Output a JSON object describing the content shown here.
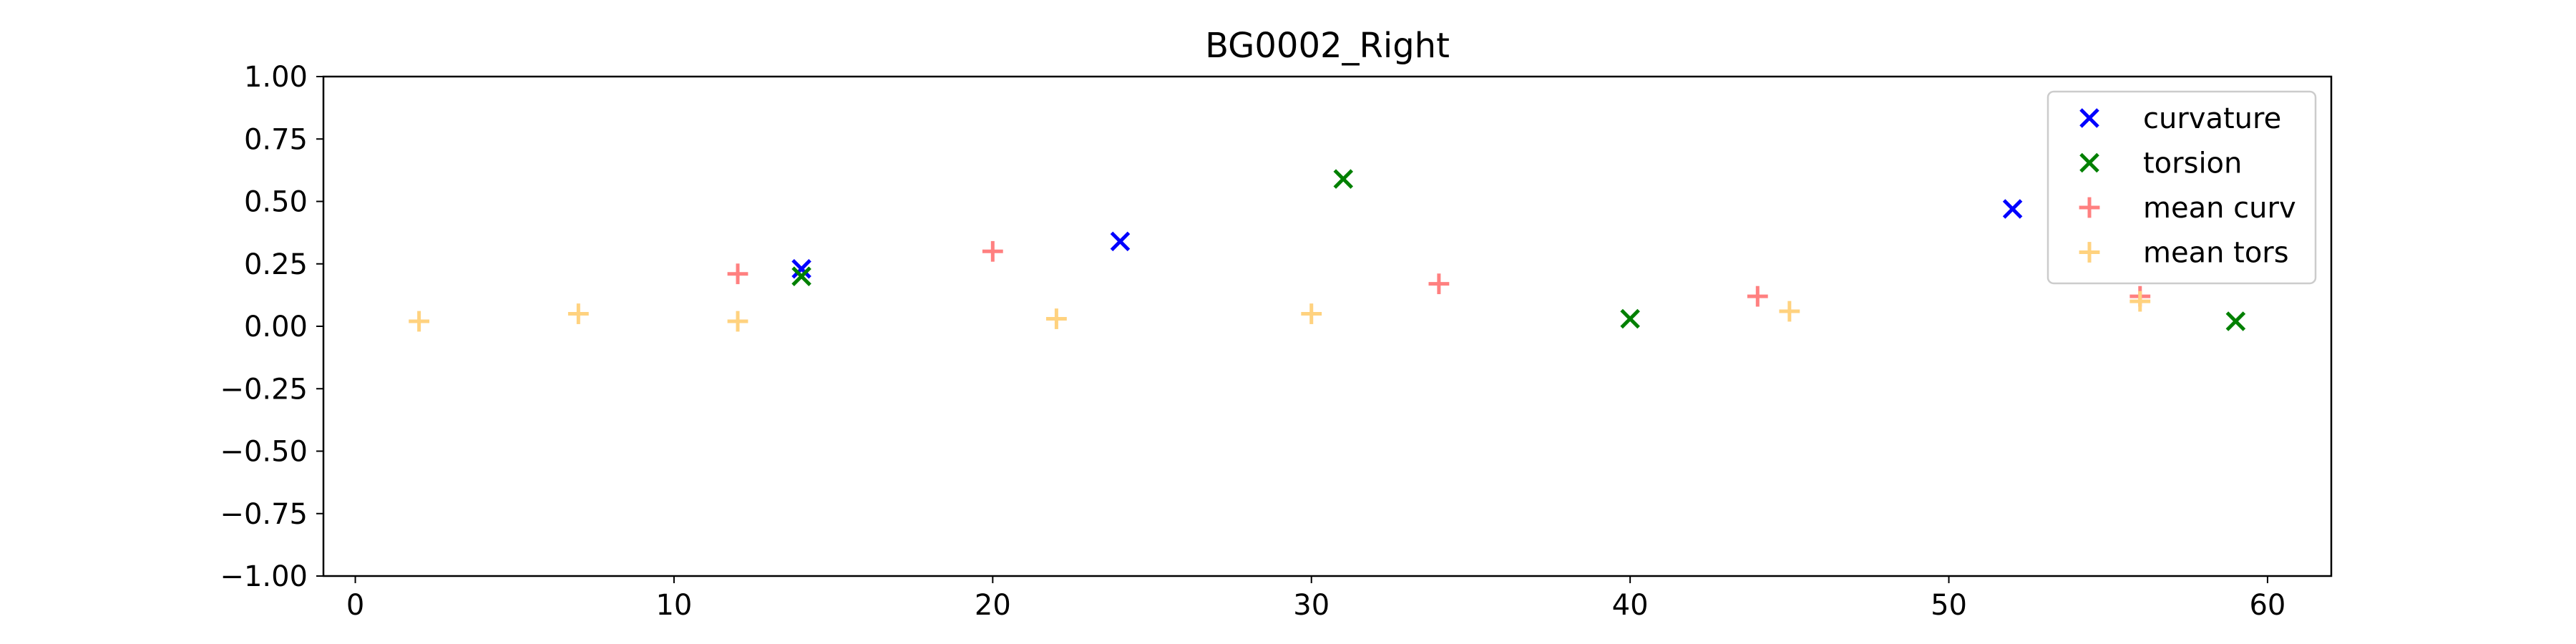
{
  "chart_data": {
    "type": "scatter",
    "title": "BG0002_Right",
    "xlabel": "",
    "ylabel": "",
    "xlim": [
      -1,
      62
    ],
    "ylim": [
      -1.0,
      1.0
    ],
    "x_ticks": [
      0,
      10,
      20,
      30,
      40,
      50,
      60
    ],
    "y_ticks": [
      -1.0,
      -0.75,
      -0.5,
      -0.25,
      0.0,
      0.25,
      0.5,
      0.75,
      1.0
    ],
    "x_tick_labels": [
      "0",
      "10",
      "20",
      "30",
      "40",
      "50",
      "60"
    ],
    "y_tick_labels": [
      "−1.00",
      "−0.75",
      "−0.50",
      "−0.25",
      "0.00",
      "0.25",
      "0.50",
      "0.75",
      "1.00"
    ],
    "grid": false,
    "legend_position": "top-right",
    "series": [
      {
        "name": "curvature",
        "marker": "x",
        "color": "#0000ff",
        "alpha": 1.0,
        "points": [
          [
            14,
            0.23
          ],
          [
            24,
            0.34
          ],
          [
            52,
            0.47
          ]
        ]
      },
      {
        "name": "torsion",
        "marker": "x",
        "color": "#008000",
        "alpha": 1.0,
        "points": [
          [
            14,
            0.2
          ],
          [
            31,
            0.59
          ],
          [
            40,
            0.03
          ],
          [
            59,
            0.02
          ]
        ]
      },
      {
        "name": "mean curv",
        "marker": "+",
        "color": "#ff8080",
        "alpha": 1.0,
        "points": [
          [
            12,
            0.21
          ],
          [
            20,
            0.3
          ],
          [
            34,
            0.17
          ],
          [
            44,
            0.12
          ],
          [
            56,
            0.12
          ]
        ]
      },
      {
        "name": "mean tors",
        "marker": "+",
        "color": "#ffd27f",
        "alpha": 1.0,
        "points": [
          [
            2,
            0.02
          ],
          [
            7,
            0.05
          ],
          [
            12,
            0.02
          ],
          [
            22,
            0.03
          ],
          [
            30,
            0.05
          ],
          [
            45,
            0.06
          ],
          [
            56,
            0.1
          ]
        ]
      }
    ]
  }
}
